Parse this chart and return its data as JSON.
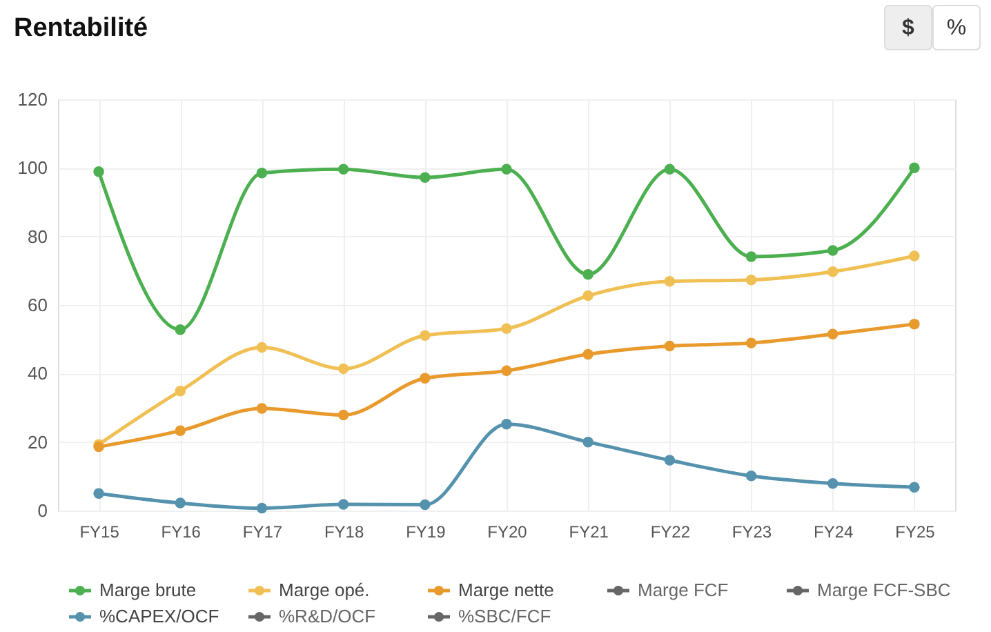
{
  "chart_data": {
    "type": "line",
    "title": "Rentabilité",
    "categories": [
      "FY15",
      "FY16",
      "FY17",
      "FY18",
      "FY19",
      "FY20",
      "FY21",
      "FY22",
      "FY23",
      "FY24",
      "FY25"
    ],
    "series": [
      {
        "name": "Marge brute",
        "color": "#4caf50",
        "values": [
          98.9,
          52.8,
          98.5,
          99.6,
          97.2,
          99.6,
          68.9,
          99.6,
          74.1,
          75.9,
          100
        ]
      },
      {
        "name": "Marge opé.",
        "color": "#f0c055",
        "values": [
          19.3,
          34.9,
          47.6,
          41.4,
          51.1,
          53.1,
          62.7,
          66.9,
          67.3,
          69.7,
          74.3
        ]
      },
      {
        "name": "Marge nette",
        "color": "#e89a2c",
        "values": [
          18.6,
          23.3,
          29.8,
          27.9,
          38.6,
          40.8,
          45.6,
          48.0,
          48.9,
          51.5,
          54.4
        ]
      },
      {
        "name": "Marge FCF",
        "color": "#666666",
        "values": [
          null,
          null,
          null,
          null,
          null,
          null,
          null,
          null,
          null,
          null,
          null
        ]
      },
      {
        "name": "Marge FCF-SBC",
        "color": "#666666",
        "values": [
          null,
          null,
          null,
          null,
          null,
          null,
          null,
          null,
          null,
          null,
          null
        ]
      },
      {
        "name": "%CAPEX/OCF",
        "color": "#5592ad",
        "values": [
          5.0,
          2.2,
          0.7,
          1.8,
          1.7,
          25.2,
          20.0,
          14.7,
          10.1,
          7.9,
          6.8
        ]
      },
      {
        "name": "%R&D/OCF",
        "color": "#666666",
        "values": [
          null,
          null,
          null,
          null,
          null,
          null,
          null,
          null,
          null,
          null,
          null
        ]
      },
      {
        "name": "%SBC/FCF",
        "color": "#666666",
        "values": [
          null,
          null,
          null,
          null,
          null,
          null,
          null,
          null,
          null,
          null,
          null
        ]
      }
    ],
    "ylim": [
      0,
      120
    ],
    "yticks": [
      0,
      20,
      40,
      60,
      80,
      100,
      120
    ],
    "grid": true,
    "legend": "bottom",
    "marker": "circle",
    "line_style": "solid",
    "annotations": [
      "$",
      "%"
    ]
  }
}
